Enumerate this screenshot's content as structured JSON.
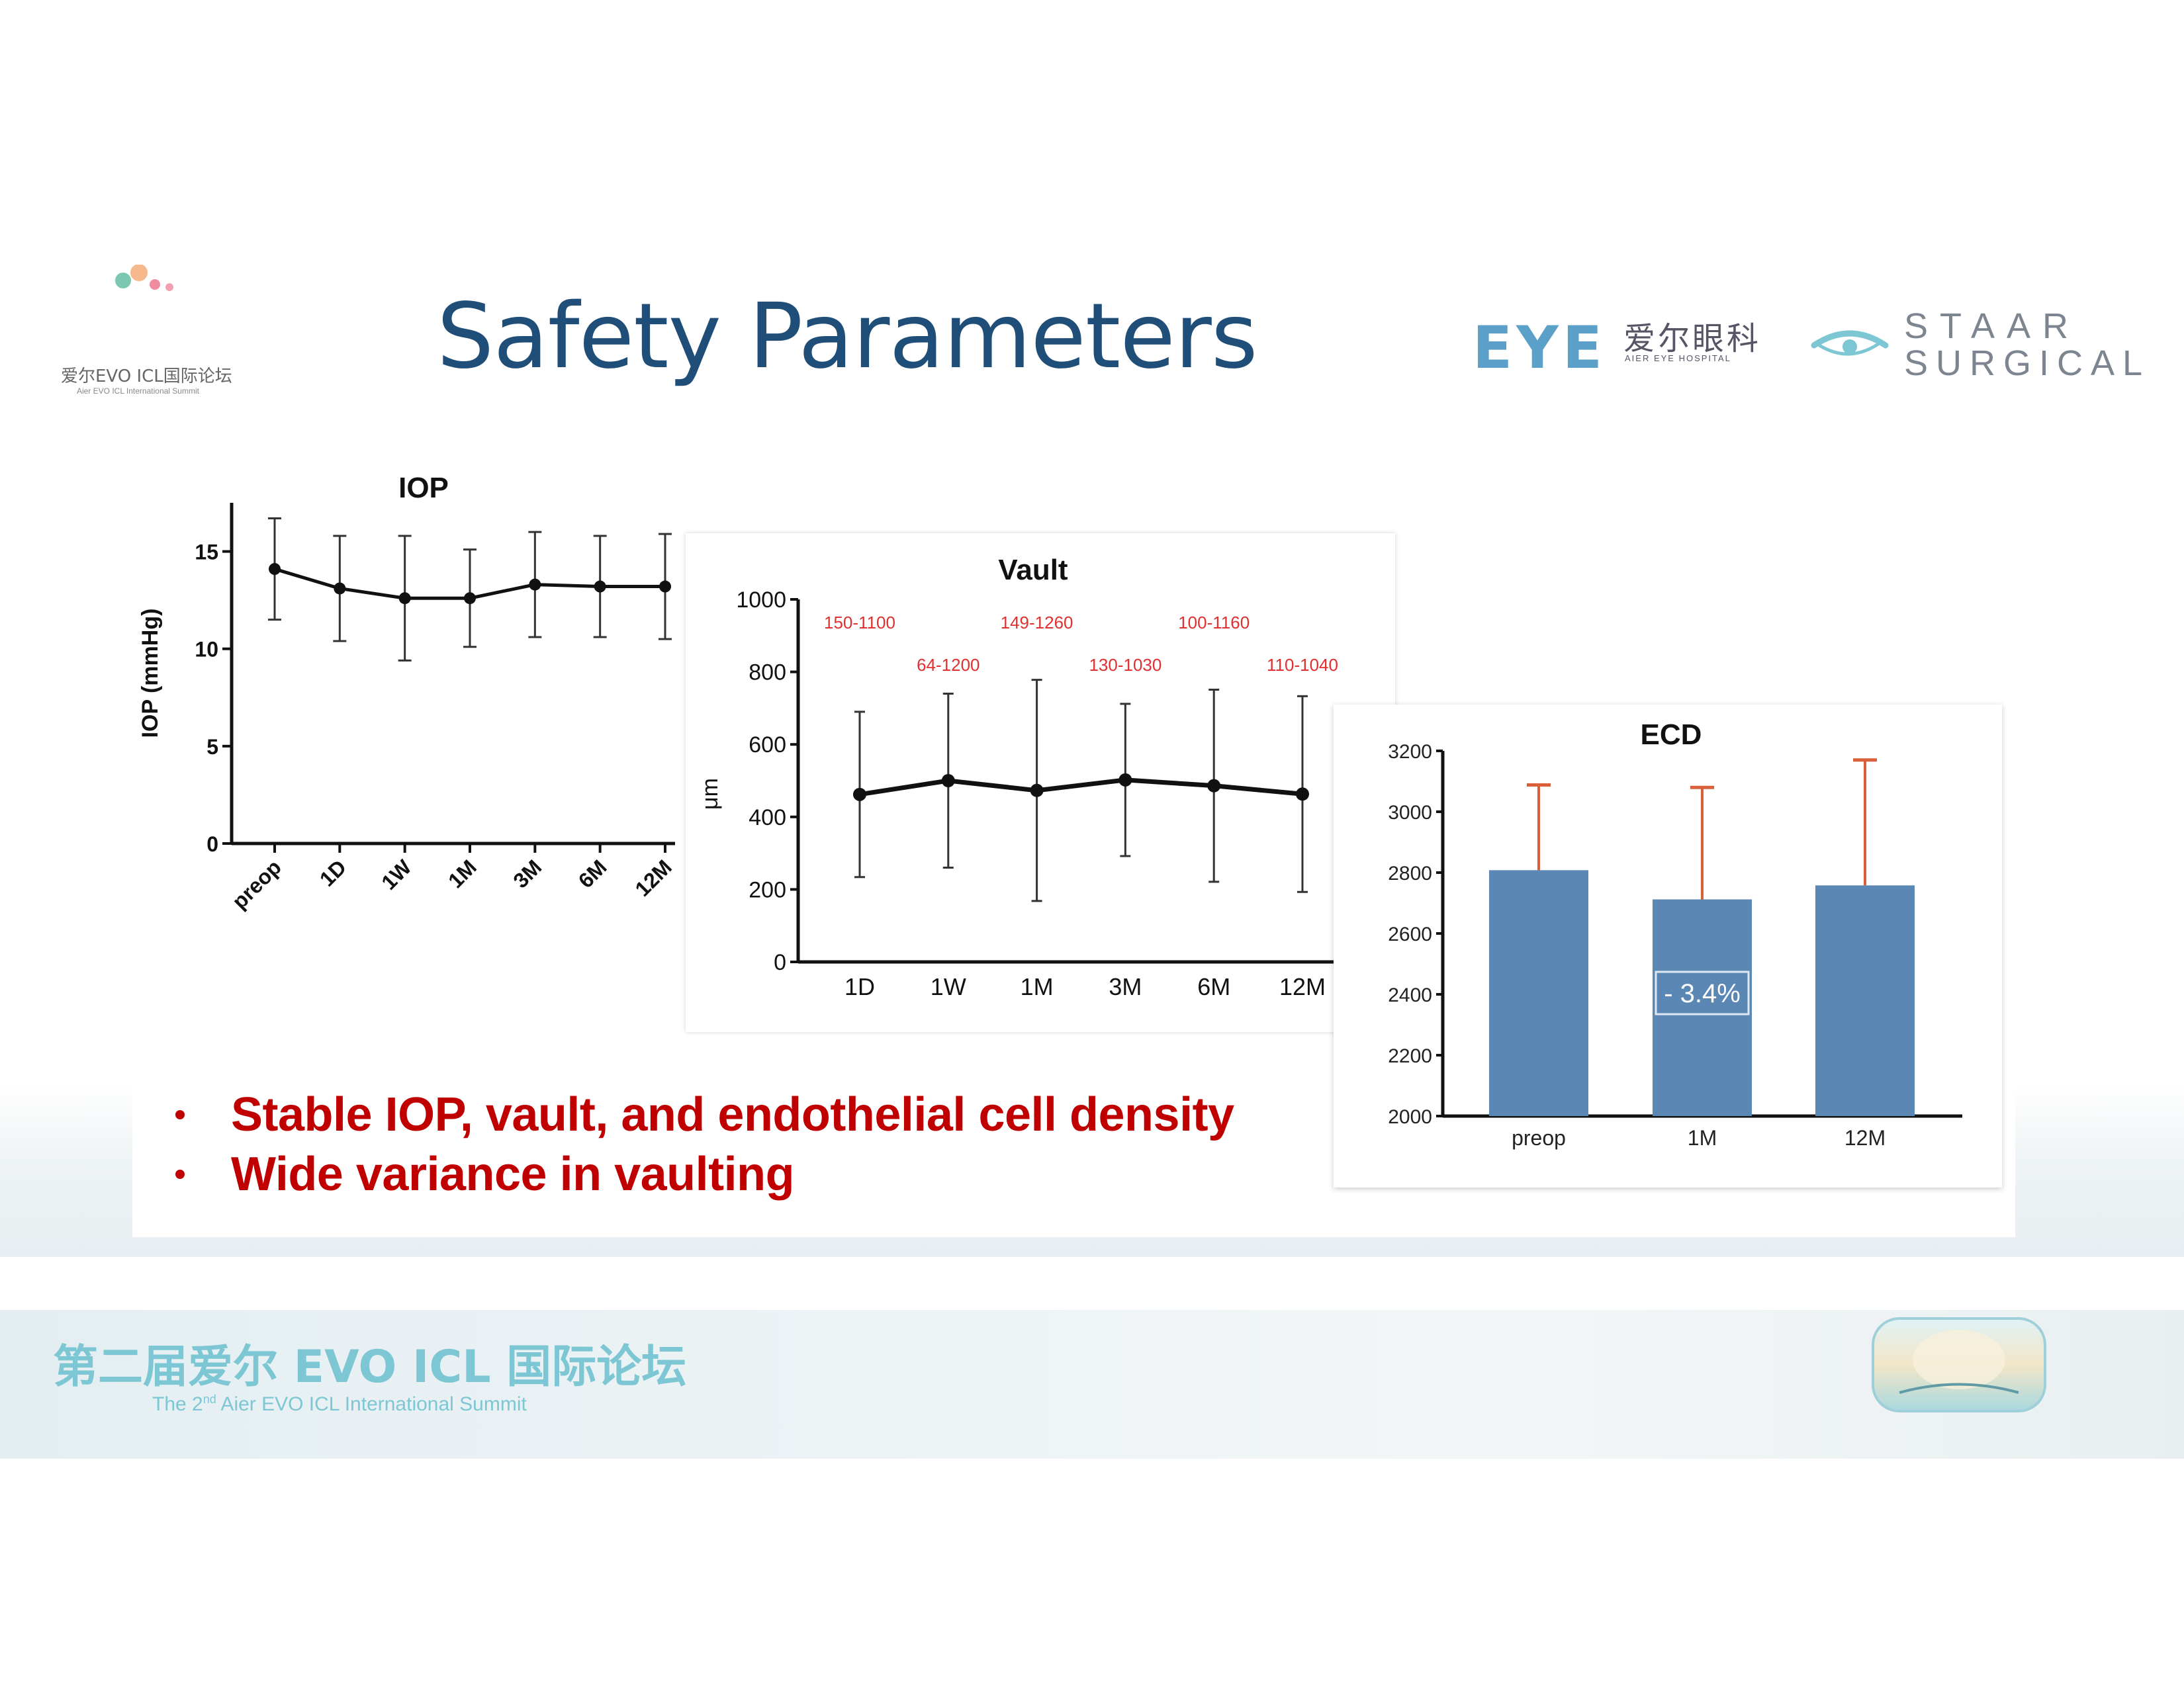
{
  "slide": {
    "title": "Safety Parameters",
    "bullets": [
      "Stable IOP, vault, and endothelial cell density",
      "Wide variance in vaulting"
    ]
  },
  "logos": {
    "summit_cn": "爱尔EVO ICL国际论坛",
    "summit_en": "Aier EVO ICL International Summit",
    "eye_mark": "EYE",
    "eye_cn": "爱尔眼科",
    "eye_en": "AIER EYE HOSPITAL",
    "staar_line1": "STAAR",
    "staar_line2": "SURGICAL"
  },
  "footer": {
    "cn": "第二届爱尔 EVO ICL 国际论坛",
    "en_prefix": "The 2",
    "en_sup": "nd",
    "en_suffix": " Aier EVO ICL International Summit"
  },
  "colors": {
    "title": "#1f4e79",
    "bullet": "#c00000",
    "bar": "#5b87b5",
    "error_bar_ecd": "#d9603b",
    "range_label": "#e03030",
    "footer": "#7cc7d3"
  },
  "chart_data": [
    {
      "type": "line",
      "title": "IOP",
      "ylabel": "IOP (mmHg)",
      "xlabel": "",
      "categories": [
        "preop",
        "1D",
        "1W",
        "1M",
        "3M",
        "6M",
        "12M"
      ],
      "values": [
        14.1,
        13.1,
        12.6,
        12.6,
        13.3,
        13.2,
        13.2
      ],
      "error": [
        2.6,
        2.7,
        3.2,
        2.5,
        2.7,
        2.6,
        2.7
      ],
      "ylim": [
        0,
        17.5
      ],
      "yticks": [
        0,
        5,
        10,
        15
      ]
    },
    {
      "type": "line",
      "title": "Vault",
      "ylabel": "μm",
      "xlabel": "",
      "categories": [
        "1D",
        "1W",
        "1M",
        "3M",
        "6M",
        "12M"
      ],
      "values": [
        462,
        500,
        473,
        502,
        486,
        463
      ],
      "error": [
        228,
        240,
        305,
        210,
        265,
        270
      ],
      "ranges": [
        "150-1100",
        "64-1200",
        "149-1260",
        "130-1030",
        "100-1160",
        "110-1040"
      ],
      "ylim": [
        0,
        1000
      ],
      "yticks": [
        0,
        200,
        400,
        600,
        800,
        1000
      ]
    },
    {
      "type": "bar",
      "title": "ECD",
      "ylabel": "",
      "xlabel": "",
      "categories": [
        "preop",
        "1M",
        "12M"
      ],
      "values": [
        2808,
        2712,
        2758
      ],
      "error": [
        280,
        368,
        412
      ],
      "ylim": [
        2000,
        3200
      ],
      "yticks": [
        2000,
        2200,
        2400,
        2600,
        2800,
        3000,
        3200
      ],
      "annotation": "- 3.4%"
    }
  ]
}
